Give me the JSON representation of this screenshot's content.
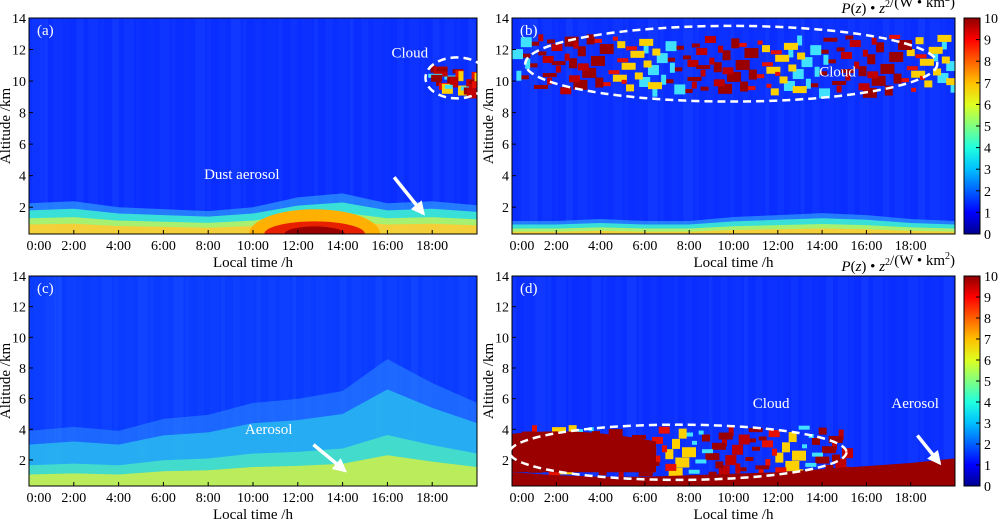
{
  "figure": {
    "xlabel": "Local time /h",
    "ylabel": "Altitude /km",
    "x_ticks": [
      "0:00",
      "2:00",
      "4:00",
      "6:00",
      "8:00",
      "10:00",
      "12:00",
      "14:00",
      "16:00",
      "18:00"
    ],
    "y_ticks": [
      "2",
      "4",
      "6",
      "8",
      "10",
      "12",
      "14"
    ]
  },
  "colorbar": {
    "label_parts": [
      "P",
      "(",
      "z",
      ")",
      " • ",
      "z",
      "2",
      "/(W • km",
      "2",
      ")"
    ],
    "ticks": [
      "0",
      "1",
      "2",
      "3",
      "4",
      "5",
      "6",
      "7",
      "8",
      "9",
      "10"
    ],
    "colors": [
      "#00008f",
      "#0000ff",
      "#0060ff",
      "#00c0ff",
      "#20ffdf",
      "#80ff80",
      "#dfff20",
      "#ffc000",
      "#ff6000",
      "#ff0000",
      "#8f0000"
    ]
  },
  "chart_data": [
    {
      "type": "heatmap",
      "panel": "(a)",
      "xlabel": "Local time /h",
      "ylabel": "Altitude /km",
      "xlim": [
        0,
        20
      ],
      "ylim": [
        0.3,
        14
      ],
      "annotations": [
        {
          "text": "Cloud",
          "time_h": 17.0,
          "alt_km": 11.5
        },
        {
          "text": "Dust aerosol",
          "time_h": 9.5,
          "alt_km": 3.8
        }
      ],
      "features": [
        {
          "kind": "boundary_layer",
          "top_km": [
            1.8,
            1.9,
            1.6,
            1.5,
            1.4,
            1.6,
            2.1,
            2.3,
            1.8,
            1.9,
            1.7
          ]
        },
        {
          "kind": "dust_core",
          "time_range_h": [
            10.5,
            15.0
          ],
          "alt_range_km": [
            0.3,
            1.1
          ]
        },
        {
          "kind": "cloud",
          "time_range_h": [
            17.8,
            20.0
          ],
          "alt_range_km": [
            9.5,
            11.0
          ]
        }
      ],
      "arrow": {
        "from": [
          16.3,
          3.9
        ],
        "to": [
          17.6,
          1.6
        ]
      },
      "ellipse": {
        "center": [
          19.1,
          10.2
        ],
        "radius_h": 1.4,
        "radius_km": 1.3
      }
    },
    {
      "type": "heatmap",
      "panel": "(b)",
      "xlabel": "Local time /h",
      "ylabel": "Altitude /km",
      "xlim": [
        0,
        20
      ],
      "ylim": [
        0.3,
        14
      ],
      "annotations": [
        {
          "text": "Cloud",
          "time_h": 14.7,
          "alt_km": 10.3
        }
      ],
      "features": [
        {
          "kind": "cloud_layer",
          "time_range_h": [
            0,
            20
          ],
          "alt_range_km": [
            9.5,
            13.0
          ]
        },
        {
          "kind": "boundary_layer",
          "top_km": [
            0.9,
            0.9,
            1.0,
            0.9,
            0.9,
            1.1,
            1.2,
            1.3,
            1.2,
            1.0,
            0.9
          ]
        }
      ],
      "ellipse": {
        "center": [
          9.9,
          11.1
        ],
        "radius_h": 9.3,
        "radius_km": 2.4
      }
    },
    {
      "type": "heatmap",
      "panel": "(c)",
      "xlabel": "Local time /h",
      "ylabel": "Altitude /km",
      "xlim": [
        0,
        20
      ],
      "ylim": [
        0.3,
        14
      ],
      "annotations": [
        {
          "text": "Aerosol",
          "time_h": 10.7,
          "alt_km": 3.7
        }
      ],
      "features": [
        {
          "kind": "saturated_surface_layer",
          "top_km": [
            0.6,
            0.6,
            0.6,
            0.6,
            0.7,
            0.8,
            0.9,
            1.0,
            1.1,
            1.0,
            0.9
          ]
        },
        {
          "kind": "aerosol_layer",
          "top_km": [
            3.0,
            3.2,
            3.0,
            3.6,
            3.8,
            4.4,
            4.6,
            5.0,
            6.6,
            5.4,
            4.4
          ]
        }
      ],
      "arrow": {
        "from": [
          12.7,
          3.0
        ],
        "to": [
          14.1,
          1.3
        ]
      }
    },
    {
      "type": "heatmap",
      "panel": "(d)",
      "xlabel": "Local time /h",
      "ylabel": "Altitude /km",
      "xlim": [
        0,
        20
      ],
      "ylim": [
        0.3,
        14
      ],
      "annotations": [
        {
          "text": "Cloud",
          "time_h": 11.7,
          "alt_km": 5.4
        },
        {
          "text": "Aerosol",
          "time_h": 18.2,
          "alt_km": 5.4
        }
      ],
      "features": [
        {
          "kind": "low_cloud",
          "time_range_h": [
            0,
            15.2
          ],
          "alt_range_km": [
            1.2,
            4.3
          ]
        },
        {
          "kind": "saturated_surface_layer",
          "top_km": [
            1.2,
            1.0,
            0.9,
            0.9,
            1.0,
            1.1,
            1.2,
            1.4,
            1.6,
            1.8,
            2.1
          ]
        }
      ],
      "arrow": {
        "from": [
          18.3,
          3.6
        ],
        "to": [
          19.3,
          1.8
        ]
      },
      "ellipse": {
        "center": [
          7.5,
          2.5
        ],
        "radius_h": 7.6,
        "radius_km": 1.8
      }
    }
  ]
}
